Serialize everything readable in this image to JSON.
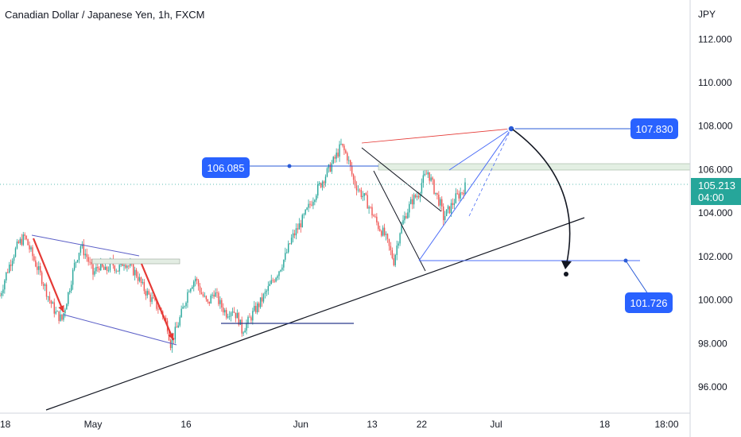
{
  "title": "Canadian Dollar / Japanese Yen, 1h, FXCM",
  "chart_data": {
    "type": "candlestick",
    "currency_label": "JPY",
    "ylim": [
      94.8,
      113.8
    ],
    "y_ticks": [
      "112.000",
      "110.000",
      "108.000",
      "106.000",
      "104.000",
      "102.000",
      "100.000",
      "98.000",
      "96.000"
    ],
    "y_tick_values": [
      112,
      110,
      108,
      106,
      104,
      102,
      100,
      98,
      96
    ],
    "x_ticks": [
      "18",
      "May",
      "16",
      "Jun",
      "13",
      "22",
      "Jul",
      "18",
      "18:00"
    ],
    "x_tick_index": [
      0,
      30,
      60,
      97,
      120,
      136,
      160,
      195,
      215
    ],
    "last_price": "105.213",
    "last_price_value": 105.213,
    "countdown": "04:00",
    "labels": [
      {
        "text": "107.830",
        "value": 107.83
      },
      {
        "text": "106.085",
        "value": 106.085
      },
      {
        "text": "101.726",
        "value": 101.726
      }
    ],
    "price_path": [
      [
        0,
        100.2
      ],
      [
        2,
        101.2
      ],
      [
        4,
        102.0
      ],
      [
        6,
        102.6
      ],
      [
        8,
        102.9
      ],
      [
        10,
        102.2
      ],
      [
        12,
        101.5
      ],
      [
        14,
        100.8
      ],
      [
        16,
        100.0
      ],
      [
        18,
        99.4
      ],
      [
        20,
        99.1
      ],
      [
        22,
        100.3
      ],
      [
        24,
        101.6
      ],
      [
        26,
        102.5
      ],
      [
        28,
        102.0
      ],
      [
        30,
        101.2
      ],
      [
        32,
        101.6
      ],
      [
        34,
        101.3
      ],
      [
        36,
        101.7
      ],
      [
        38,
        101.4
      ],
      [
        40,
        101.8
      ],
      [
        42,
        101.5
      ],
      [
        44,
        101.2
      ],
      [
        46,
        100.6
      ],
      [
        48,
        100.2
      ],
      [
        50,
        99.8
      ],
      [
        52,
        99.5
      ],
      [
        54,
        98.8
      ],
      [
        55,
        98.0
      ],
      [
        57,
        98.7
      ],
      [
        59,
        99.6
      ],
      [
        61,
        100.6
      ],
      [
        63,
        101.0
      ],
      [
        65,
        100.3
      ],
      [
        67,
        99.8
      ],
      [
        69,
        100.4
      ],
      [
        71,
        99.8
      ],
      [
        73,
        99.4
      ],
      [
        75,
        99.6
      ],
      [
        77,
        99.1
      ],
      [
        78,
        98.6
      ],
      [
        80,
        99.0
      ],
      [
        82,
        99.5
      ],
      [
        84,
        99.9
      ],
      [
        86,
        100.4
      ],
      [
        88,
        100.9
      ],
      [
        90,
        101.4
      ],
      [
        92,
        102.0
      ],
      [
        94,
        102.8
      ],
      [
        96,
        103.3
      ],
      [
        98,
        103.8
      ],
      [
        100,
        104.4
      ],
      [
        102,
        105.0
      ],
      [
        104,
        105.5
      ],
      [
        106,
        106.0
      ],
      [
        108,
        106.5
      ],
      [
        110,
        107.1
      ],
      [
        112,
        106.6
      ],
      [
        114,
        105.5
      ],
      [
        116,
        105.0
      ],
      [
        118,
        104.6
      ],
      [
        120,
        104.0
      ],
      [
        122,
        103.4
      ],
      [
        124,
        103.0
      ],
      [
        126,
        102.2
      ],
      [
        127,
        101.8
      ],
      [
        129,
        103.2
      ],
      [
        131,
        104.0
      ],
      [
        133,
        104.6
      ],
      [
        135,
        104.9
      ],
      [
        136,
        105.4
      ],
      [
        138,
        105.9
      ],
      [
        140,
        105.1
      ],
      [
        142,
        104.4
      ],
      [
        143,
        103.8
      ],
      [
        145,
        104.2
      ],
      [
        147,
        104.7
      ],
      [
        149,
        105.0
      ],
      [
        150,
        105.21
      ]
    ]
  }
}
